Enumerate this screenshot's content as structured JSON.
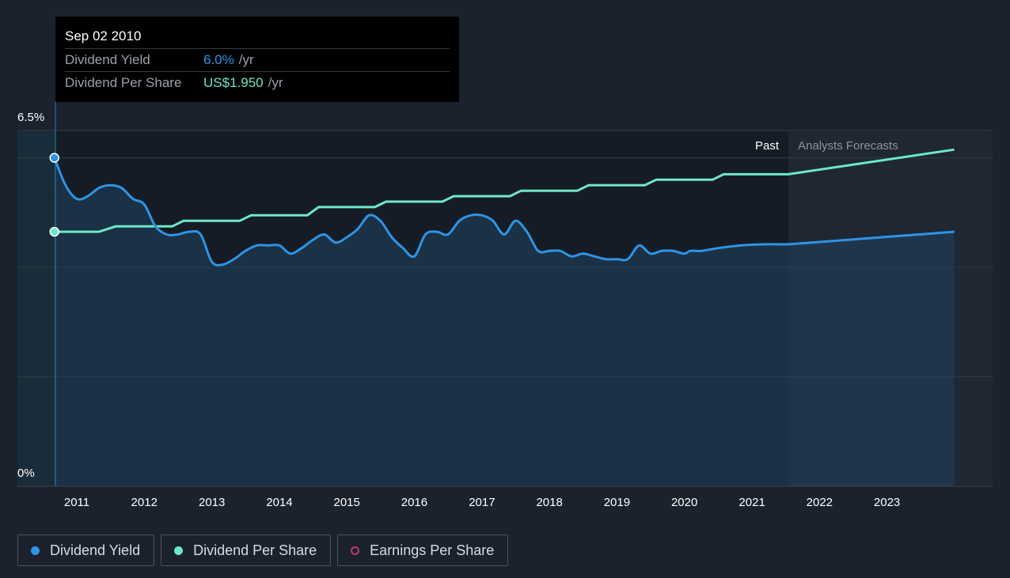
{
  "tooltip": {
    "date": "Sep 02 2010",
    "yield_label": "Dividend Yield",
    "yield_value": "6.0%",
    "yield_unit": "/yr",
    "dps_label": "Dividend Per Share",
    "dps_value": "US$1.950",
    "dps_unit": "/yr"
  },
  "legend": [
    {
      "label": "Dividend Yield",
      "color": "#2d94e6",
      "style": "filled"
    },
    {
      "label": "Dividend Per Share",
      "color": "#6ee8c8",
      "style": "filled"
    },
    {
      "label": "Earnings Per Share",
      "color": "#c2357a",
      "style": "outline"
    }
  ],
  "chart_data": {
    "type": "line",
    "x_axis_type": "date",
    "x_tick_labels": [
      "2011",
      "2012",
      "2013",
      "2014",
      "2015",
      "2016",
      "2017",
      "2018",
      "2019",
      "2020",
      "2021",
      "2022",
      "2023"
    ],
    "y_tick_labels": [
      "6.5%",
      "0%"
    ],
    "ylim": [
      0,
      6.5
    ],
    "section_labels": {
      "past": "Past",
      "forecast": "Analysts Forecasts"
    },
    "forecast_start": "2021-07-15",
    "grid": true,
    "colors": {
      "dividend_yield": "#2d94e6",
      "dividend_per_share": "#6ee8c8",
      "grid": "#323a46"
    },
    "series": [
      {
        "name": "Dividend Yield",
        "unit": "%",
        "points": [
          [
            "2010-09-02",
            6.0
          ],
          [
            "2010-11-01",
            5.5
          ],
          [
            "2011-01-01",
            5.25
          ],
          [
            "2011-03-01",
            5.3
          ],
          [
            "2011-05-01",
            5.45
          ],
          [
            "2011-07-01",
            5.5
          ],
          [
            "2011-09-01",
            5.45
          ],
          [
            "2011-11-01",
            5.25
          ],
          [
            "2012-01-01",
            5.15
          ],
          [
            "2012-03-01",
            4.75
          ],
          [
            "2012-05-01",
            4.6
          ],
          [
            "2012-07-01",
            4.6
          ],
          [
            "2012-09-01",
            4.65
          ],
          [
            "2012-11-01",
            4.6
          ],
          [
            "2013-01-01",
            4.1
          ],
          [
            "2013-03-01",
            4.05
          ],
          [
            "2013-05-01",
            4.15
          ],
          [
            "2013-07-01",
            4.3
          ],
          [
            "2013-09-01",
            4.4
          ],
          [
            "2013-11-01",
            4.4
          ],
          [
            "2014-01-01",
            4.4
          ],
          [
            "2014-03-01",
            4.25
          ],
          [
            "2014-05-01",
            4.35
          ],
          [
            "2014-07-01",
            4.5
          ],
          [
            "2014-09-01",
            4.6
          ],
          [
            "2014-11-01",
            4.45
          ],
          [
            "2015-01-01",
            4.55
          ],
          [
            "2015-03-01",
            4.7
          ],
          [
            "2015-05-01",
            4.95
          ],
          [
            "2015-07-01",
            4.85
          ],
          [
            "2015-09-01",
            4.55
          ],
          [
            "2015-11-01",
            4.35
          ],
          [
            "2016-01-01",
            4.2
          ],
          [
            "2016-03-01",
            4.6
          ],
          [
            "2016-05-01",
            4.65
          ],
          [
            "2016-07-01",
            4.6
          ],
          [
            "2016-09-01",
            4.85
          ],
          [
            "2016-11-01",
            4.95
          ],
          [
            "2017-01-01",
            4.95
          ],
          [
            "2017-03-01",
            4.85
          ],
          [
            "2017-05-01",
            4.6
          ],
          [
            "2017-07-01",
            4.85
          ],
          [
            "2017-09-01",
            4.65
          ],
          [
            "2017-11-01",
            4.3
          ],
          [
            "2018-01-01",
            4.3
          ],
          [
            "2018-03-01",
            4.3
          ],
          [
            "2018-05-01",
            4.2
          ],
          [
            "2018-07-01",
            4.25
          ],
          [
            "2018-09-01",
            4.2
          ],
          [
            "2018-11-01",
            4.15
          ],
          [
            "2019-01-01",
            4.15
          ],
          [
            "2019-03-01",
            4.15
          ],
          [
            "2019-05-01",
            4.4
          ],
          [
            "2019-07-01",
            4.25
          ],
          [
            "2019-09-01",
            4.3
          ],
          [
            "2019-11-01",
            4.3
          ],
          [
            "2020-01-01",
            4.25
          ],
          [
            "2020-02-01",
            4.3
          ],
          [
            "2020-04-01",
            4.3
          ],
          [
            "2020-07-01",
            4.35
          ],
          [
            "2020-11-01",
            4.4
          ],
          [
            "2021-03-01",
            4.42
          ],
          [
            "2021-07-15",
            4.42
          ]
        ],
        "forecast": [
          [
            "2021-07-15",
            4.42
          ],
          [
            "2023-12-31",
            4.65
          ]
        ]
      },
      {
        "name": "Dividend Per Share",
        "unit": "US$",
        "y_at_top_gridline": 6.0,
        "points": [
          [
            "2010-09-02",
            4.65
          ],
          [
            "2011-05-01",
            4.65
          ],
          [
            "2011-08-01",
            4.75
          ],
          [
            "2012-06-01",
            4.75
          ],
          [
            "2012-08-01",
            4.85
          ],
          [
            "2013-06-01",
            4.85
          ],
          [
            "2013-08-01",
            4.95
          ],
          [
            "2014-06-01",
            4.95
          ],
          [
            "2014-08-01",
            5.1
          ],
          [
            "2015-06-01",
            5.1
          ],
          [
            "2015-08-01",
            5.2
          ],
          [
            "2016-06-01",
            5.2
          ],
          [
            "2016-08-01",
            5.3
          ],
          [
            "2017-06-01",
            5.3
          ],
          [
            "2017-08-01",
            5.4
          ],
          [
            "2018-06-01",
            5.4
          ],
          [
            "2018-08-01",
            5.5
          ],
          [
            "2019-06-01",
            5.5
          ],
          [
            "2019-08-01",
            5.6
          ],
          [
            "2020-06-01",
            5.6
          ],
          [
            "2020-08-01",
            5.7
          ],
          [
            "2021-07-15",
            5.7
          ]
        ],
        "forecast": [
          [
            "2021-07-15",
            5.7
          ],
          [
            "2023-12-31",
            6.15
          ]
        ]
      }
    ]
  }
}
